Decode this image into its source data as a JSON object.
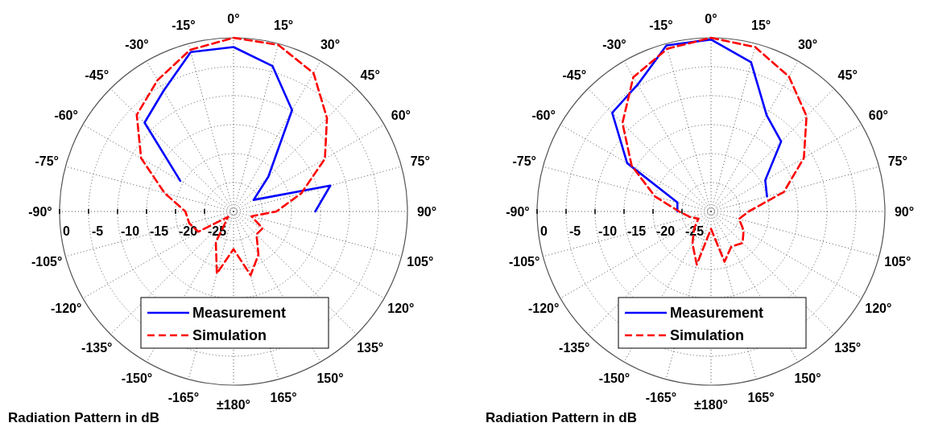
{
  "chart_data": [
    {
      "type": "radar",
      "categories": [
        "0°",
        "15°",
        "30°",
        "45°",
        "60°",
        "75°",
        "90°",
        "105°",
        "120°",
        "135°",
        "150°",
        "165°",
        "±180°",
        "-165°",
        "-150°",
        "-135°",
        "-120°",
        "-105°",
        "-90°",
        "-75°",
        "-60°",
        "-45°",
        "-30°",
        "-15°"
      ],
      "ylim": [
        -30,
        0
      ],
      "yticks": [
        0,
        -5,
        -10,
        -15,
        -20,
        -25
      ],
      "grid": true,
      "legend": "bottom",
      "annotations": [
        "Radiation Pattern in dB"
      ],
      "series": [
        {
          "name": "Measurement",
          "color": "#0000ff",
          "line_style": "solid",
          "values": [
            -1.6,
            -4,
            -9.8,
            -21.5,
            -26,
            -12.7,
            -15.9,
            null,
            null,
            null,
            null,
            null,
            null,
            null,
            null,
            null,
            null,
            null,
            null,
            null,
            -19.4,
            -8.3,
            -5.9,
            -1.5
          ]
        },
        {
          "name": "Simulation",
          "color": "#ff0000",
          "line_style": "dashed",
          "values": [
            0,
            -0.2,
            -2.4,
            -7.2,
            -11.8,
            -17.9,
            -22.6,
            -26.8,
            -24.2,
            -24.4,
            -21.4,
            -18.6,
            -23.5,
            -18.9,
            -23.9,
            -28.7,
            -23,
            -22.1,
            -21.7,
            -17.7,
            -11.6,
            -6.4,
            -3.8,
            -1.1
          ]
        }
      ]
    },
    {
      "type": "radar",
      "categories": [
        "0°",
        "15°",
        "30°",
        "45°",
        "60°",
        "75°",
        "90°",
        "105°",
        "120°",
        "135°",
        "150°",
        "165°",
        "±180°",
        "-165°",
        "-150°",
        "-135°",
        "-120°",
        "-105°",
        "-90°",
        "-75°",
        "-60°",
        "-45°",
        "-30°",
        "-15°"
      ],
      "ylim": [
        -30,
        0
      ],
      "yticks": [
        0,
        -5,
        -10,
        -15,
        -20,
        -25
      ],
      "grid": true,
      "legend": "bottom",
      "annotations": [
        "Radiation Pattern in dB"
      ],
      "series": [
        {
          "name": "Measurement",
          "color": "#0000ff",
          "line_style": "solid",
          "values": [
            -0.3,
            -3.3,
            -10.8,
            -12.9,
            -19.2,
            -20,
            null,
            null,
            null,
            null,
            null,
            null,
            null,
            null,
            null,
            null,
            null,
            null,
            -24.2,
            -24,
            -13.3,
            -5.9,
            -4.7,
            -0.3
          ]
        },
        {
          "name": "Simulation",
          "color": "#ff0000",
          "line_style": "dashed",
          "values": [
            0,
            -0.6,
            -3.1,
            -6.7,
            -11.5,
            -17,
            -23.5,
            -25,
            -23.5,
            -22.3,
            -23,
            -21,
            -27,
            -20.5,
            -23.6,
            -25.9,
            -27.5,
            -26.3,
            -24.5,
            -20,
            -14.2,
            -8.4,
            -3.2,
            -0.9
          ]
        }
      ]
    }
  ]
}
